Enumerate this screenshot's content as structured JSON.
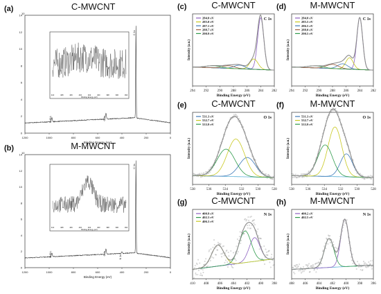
{
  "chart_data": [
    {
      "panel": "(a)",
      "type": "line",
      "title": "C-MWCNT",
      "xlabel": "Binding Energy (eV)",
      "ylabel": "",
      "xlim": [
        1200,
        0
      ],
      "ylim": [
        0,
        140000
      ],
      "x_ticks": [
        "1200",
        "1000",
        "800",
        "600",
        "400",
        "200",
        "0"
      ],
      "exponent": "10",
      "y_ticks": [
        "14",
        "12",
        "10",
        "8",
        "6",
        "4",
        "2",
        "0"
      ],
      "peaks": [
        {
          "label": "O KLL",
          "x": 978,
          "height": 5000
        },
        {
          "label": "O 1s",
          "x": 532,
          "height": 7000
        },
        {
          "label": "C 1s",
          "x": 284.5,
          "height": 112000
        }
      ],
      "inset": {
        "xlabel": "Binding Energy (eV)",
        "x_ticks": [
          "410",
          "408",
          "406",
          "404",
          "402",
          "400",
          "398",
          "396",
          "394"
        ]
      }
    },
    {
      "panel": "(b)",
      "type": "line",
      "title": "M-MWCNT",
      "xlabel": "Binding Energy (eV)",
      "ylabel": "",
      "xlim": [
        1200,
        0
      ],
      "ylim": [
        0,
        140000
      ],
      "x_ticks": [
        "1200",
        "1000",
        "800",
        "600",
        "400",
        "200",
        "0"
      ],
      "exponent": "10",
      "y_ticks": [
        "14",
        "12",
        "10",
        "8",
        "6",
        "4",
        "2",
        "0"
      ],
      "peaks": [
        {
          "label": "O KLL",
          "x": 978,
          "height": 4500
        },
        {
          "label": "O 1s",
          "x": 532,
          "height": 6500
        },
        {
          "label": "N 1s",
          "x": 400,
          "height": 2200
        },
        {
          "label": "C 1s",
          "x": 284.5,
          "height": 118000
        }
      ],
      "inset": {
        "xlabel": "Binding Energy (eV)",
        "x_ticks": [
          "410",
          "408",
          "406",
          "404",
          "402",
          "400",
          "398",
          "396",
          "394"
        ]
      }
    },
    {
      "panel": "(c)",
      "type": "line",
      "title": "C-MWCNT",
      "region": "C 1s",
      "xlabel": "Binding Energy (eV)",
      "ylabel": "Intensity (a.u.)",
      "xlim": [
        294,
        282
      ],
      "x_ticks": [
        "294",
        "292",
        "290",
        "288",
        "286",
        "284",
        "282"
      ],
      "components": [
        {
          "label": "284.0 eV",
          "center": 284.0,
          "amp": 1.0,
          "sigma": 0.45,
          "color": "#8b5fbf"
        },
        {
          "label": "285.0 eV",
          "center": 285.0,
          "amp": 0.2,
          "sigma": 0.6,
          "color": "#c8c81e"
        },
        {
          "label": "287.1 eV",
          "center": 287.1,
          "amp": 0.07,
          "sigma": 0.8,
          "color": "#3e7ab8"
        },
        {
          "label": "288.7 eV",
          "center": 288.7,
          "amp": 0.05,
          "sigma": 0.9,
          "color": "#9a5a3a"
        },
        {
          "label": "290.9 eV",
          "center": 290.9,
          "amp": 0.04,
          "sigma": 1.1,
          "color": "#2e9a4a"
        }
      ]
    },
    {
      "panel": "(d)",
      "type": "line",
      "title": "M-MWCNT",
      "region": "C 1s",
      "xlabel": "Binding Energy (eV)",
      "ylabel": "Intensity (a.u.)",
      "xlim": [
        294,
        282
      ],
      "x_ticks": [
        "294",
        "292",
        "290",
        "288",
        "286",
        "284",
        "282"
      ],
      "components": [
        {
          "label": "284.0 eV",
          "center": 284.0,
          "amp": 1.0,
          "sigma": 0.42,
          "color": "#8b5fbf"
        },
        {
          "label": "285.5 eV",
          "center": 285.5,
          "amp": 0.22,
          "sigma": 0.55,
          "color": "#c8c81e"
        },
        {
          "label": "286.5 eV",
          "center": 286.5,
          "amp": 0.1,
          "sigma": 0.75,
          "color": "#3e7ab8"
        },
        {
          "label": "288.0 eV",
          "center": 288.0,
          "amp": 0.08,
          "sigma": 0.9,
          "color": "#9a5a3a"
        },
        {
          "label": "290.5 eV",
          "center": 290.5,
          "amp": 0.04,
          "sigma": 1.1,
          "color": "#2e9a4a"
        }
      ]
    },
    {
      "panel": "(e)",
      "type": "line",
      "title": "C-MWCNT",
      "region": "O 1s",
      "xlabel": "Binding Energy (eV)",
      "ylabel": "Intensity (a.u.)",
      "xlim": [
        538,
        528
      ],
      "x_ticks": [
        "538",
        "536",
        "534",
        "532",
        "530",
        "528"
      ],
      "components": [
        {
          "label": "531.3 eV",
          "center": 531.3,
          "amp": 0.32,
          "sigma": 1.0,
          "color": "#3e7ab8"
        },
        {
          "label": "532.7 eV",
          "center": 532.7,
          "amp": 0.62,
          "sigma": 1.05,
          "color": "#c8c81e"
        },
        {
          "label": "533.9 eV",
          "center": 533.9,
          "amp": 0.45,
          "sigma": 1.1,
          "color": "#2e9a4a"
        }
      ]
    },
    {
      "panel": "(f)",
      "type": "line",
      "title": "M-MWCNT",
      "region": "O 1s",
      "xlabel": "Binding Energy (eV)",
      "ylabel": "Intensity (a.u.)",
      "xlim": [
        538,
        528
      ],
      "x_ticks": [
        "538",
        "536",
        "534",
        "532",
        "530",
        "528"
      ],
      "components": [
        {
          "label": "531.3 eV",
          "center": 531.3,
          "amp": 0.38,
          "sigma": 0.75,
          "color": "#3e7ab8"
        },
        {
          "label": "532.7 eV",
          "center": 532.7,
          "amp": 0.82,
          "sigma": 0.85,
          "color": "#c8c81e"
        },
        {
          "label": "533.9 eV",
          "center": 533.9,
          "amp": 0.52,
          "sigma": 0.9,
          "color": "#2e9a4a"
        }
      ]
    },
    {
      "panel": "(g)",
      "type": "line",
      "title": "C-MWCNT",
      "region": "N 1s",
      "xlabel": "Binding Energy (eV)",
      "ylabel": "Intensity (a.u.)",
      "xlim": [
        410,
        398
      ],
      "x_ticks": [
        "410",
        "408",
        "406",
        "404",
        "402",
        "400",
        "398"
      ],
      "components": [
        {
          "label": "400.9 eV",
          "center": 400.9,
          "amp": 0.45,
          "sigma": 0.8,
          "color": "#8b5fbf"
        },
        {
          "label": "402.3 eV",
          "center": 402.3,
          "amp": 0.6,
          "sigma": 0.9,
          "color": "#2e9a4a"
        },
        {
          "label": "406.3 eV",
          "center": 406.3,
          "amp": 0.4,
          "sigma": 0.9,
          "color": "#c8c81e"
        }
      ]
    },
    {
      "panel": "(h)",
      "type": "line",
      "title": "M-MWCNT",
      "region": "N 1s",
      "xlabel": "Binding Energy (eV)",
      "ylabel": "Intensity (a.u.)",
      "xlim": [
        408,
        396
      ],
      "x_ticks": [
        "408",
        "406",
        "404",
        "402",
        "400",
        "398",
        "396"
      ],
      "components": [
        {
          "label": "400.2 eV",
          "center": 400.2,
          "amp": 0.9,
          "sigma": 0.6,
          "color": "#8b5fbf"
        },
        {
          "label": "402.5 eV",
          "center": 402.5,
          "amp": 0.55,
          "sigma": 0.7,
          "color": "#2e9a4a"
        }
      ]
    }
  ],
  "colors": {
    "survey_line": "#3a3a3a",
    "noise": "#555555",
    "raw_points": "#9a9a9a",
    "envelope": "#8a8a8a",
    "background": "#5ab0d8"
  }
}
